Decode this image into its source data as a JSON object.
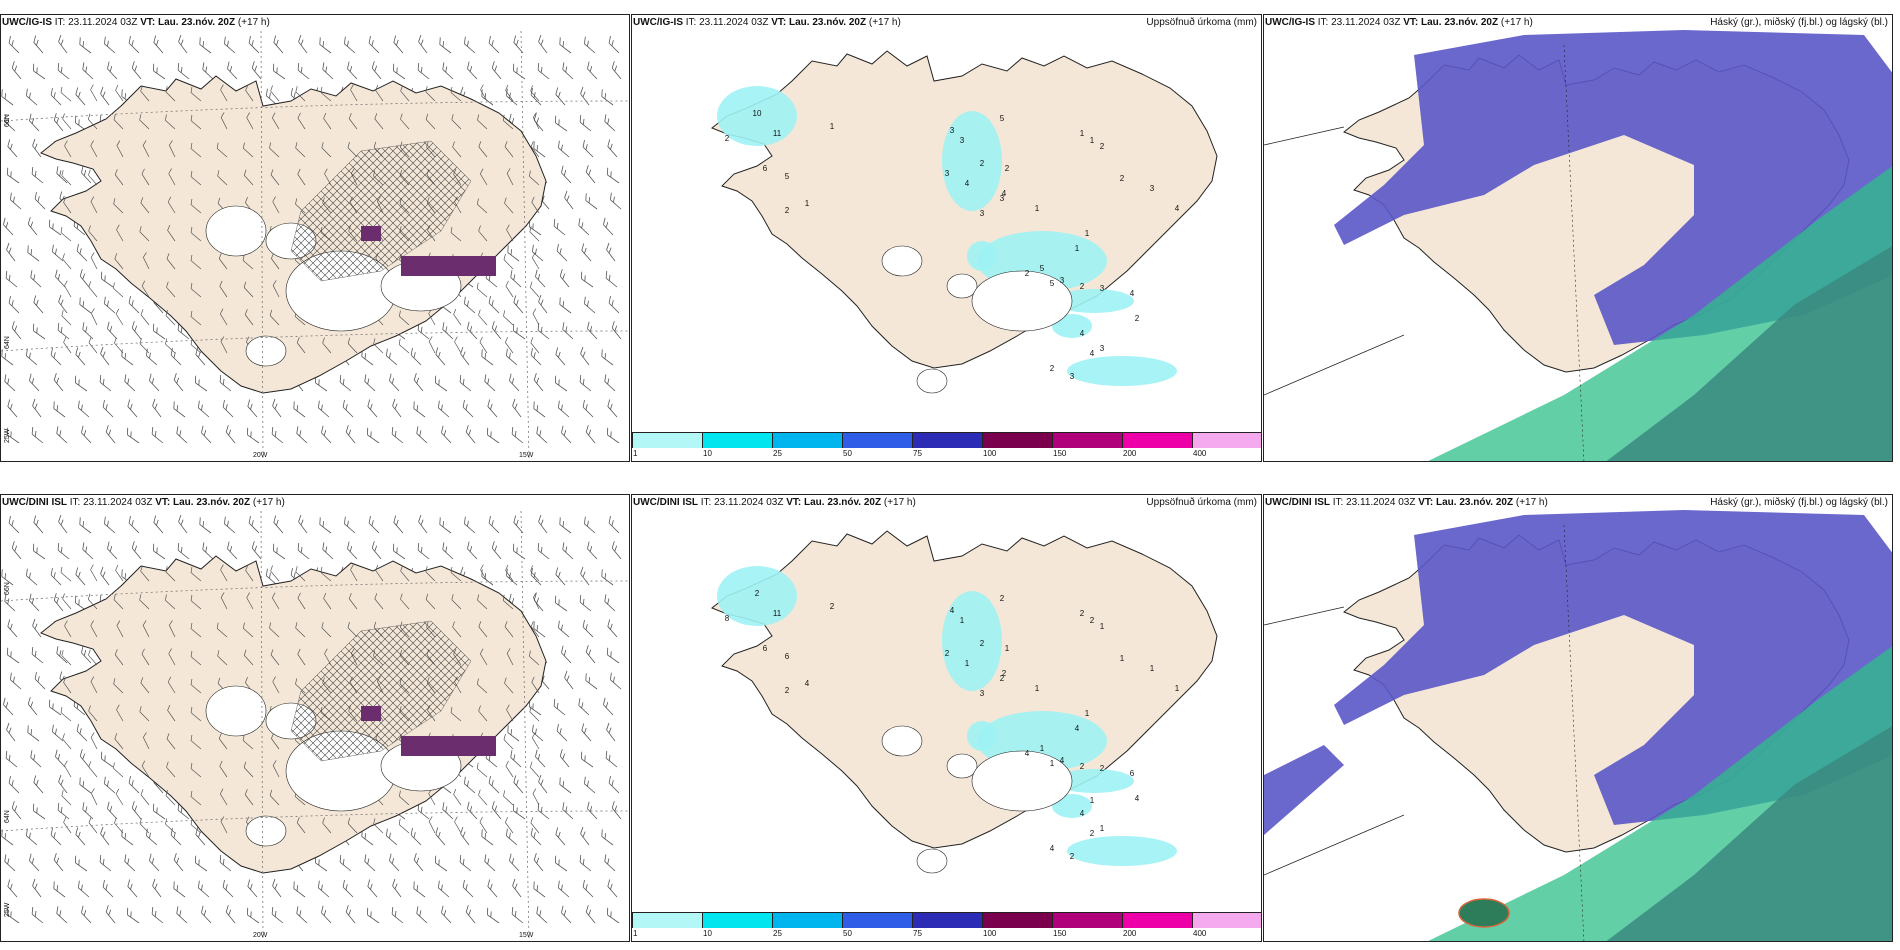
{
  "rows": [
    {
      "model": "UWC/IG-IS",
      "it_label": "IT:",
      "it_value": "23.11.2024 03Z",
      "vt_label": "VT:",
      "vt_value": "Lau. 23.nóv. 20Z",
      "lead": "(+17 h)"
    },
    {
      "model": "UWC/DINI ISL",
      "it_label": "IT:",
      "it_value": "23.11.2024 03Z",
      "vt_label": "VT:",
      "vt_value": "Lau. 23.nóv. 20Z",
      "lead": "(+17 h)"
    }
  ],
  "precip_title": "Uppsöfnuð úrkoma (mm)",
  "cloud_title": "Háský (gr.), miðský (fj.bl.) og lágský (bl.)",
  "lat_labels": [
    "66N",
    "64N"
  ],
  "lon_labels": [
    "25W",
    "20W",
    "15W"
  ],
  "legend": {
    "ticks": [
      "1",
      "10",
      "25",
      "50",
      "75",
      "100",
      "150",
      "200",
      "400"
    ],
    "colors": [
      "#b3f7f7",
      "#00e5ee",
      "#00b4ee",
      "#2f5de8",
      "#2b2bb5",
      "#7a004d",
      "#b0007a",
      "#ee00a8",
      "#f5aaf0"
    ]
  },
  "colors": {
    "land": "#f4e7d7",
    "precip_light": "#9ff2f4",
    "high_cloud": "#5a56c8",
    "mid_cloud": "#2fbf8a",
    "low_cloud": "#3a8a80",
    "purple_mark": "#6b2d6e"
  },
  "precip_numbers_top": [
    "10",
    "2",
    "11",
    "6",
    "5",
    "1",
    "2",
    "1",
    "3",
    "3",
    "3",
    "4",
    "3",
    "2",
    "3",
    "5",
    "4",
    "2",
    "1",
    "1",
    "1",
    "1",
    "2",
    "2",
    "3",
    "4",
    "1",
    "5",
    "5",
    "2",
    "3",
    "2",
    "3",
    "4",
    "2",
    "4",
    "4",
    "2",
    "3",
    "3"
  ],
  "precip_numbers_bottom": [
    "2",
    "8",
    "11",
    "6",
    "6",
    "2",
    "2",
    "4",
    "4",
    "1",
    "2",
    "1",
    "3",
    "2",
    "2",
    "2",
    "2",
    "1",
    "1",
    "1",
    "2",
    "2",
    "1",
    "1",
    "1",
    "1",
    "4",
    "1",
    "1",
    "4",
    "4",
    "2",
    "2",
    "6",
    "4",
    "4",
    "2",
    "4",
    "2",
    "1",
    "1"
  ]
}
